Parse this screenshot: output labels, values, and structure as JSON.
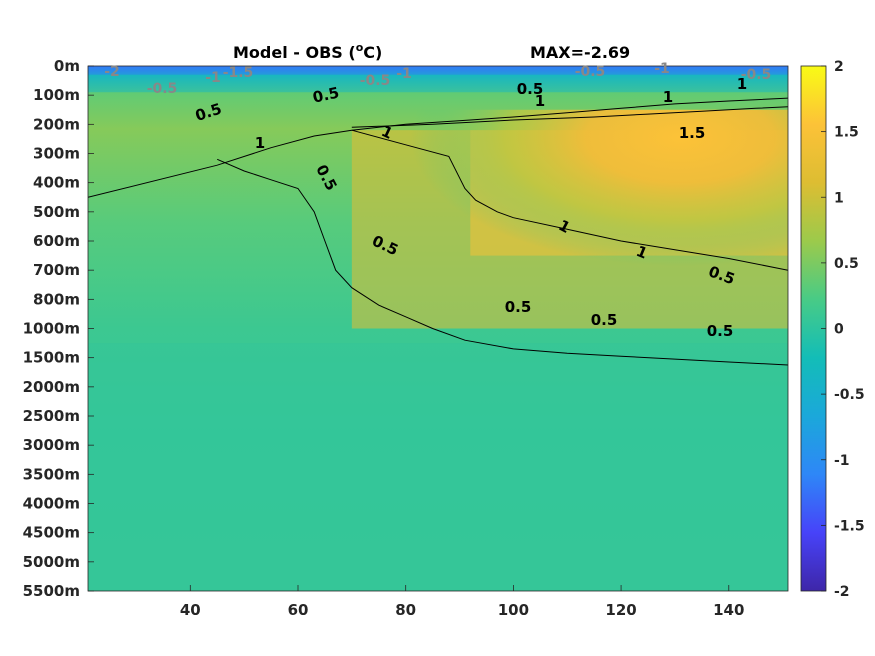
{
  "chart_data": {
    "type": "heatmap",
    "title": "Model - OBS (",
    "title_superscript": "o",
    "title_unit_suffix": "C)",
    "max_label": "MAX=-2.69",
    "x_ticks": [
      40,
      60,
      80,
      100,
      120,
      140
    ],
    "x_ticklabels": [
      "40",
      "60",
      "80",
      "100",
      "120",
      "140"
    ],
    "xlim": [
      21,
      151
    ],
    "y_ticklabels": [
      "0m",
      "100m",
      "200m",
      "300m",
      "400m",
      "500m",
      "600m",
      "700m",
      "800m",
      "1000m",
      "1500m",
      "2000m",
      "2500m",
      "3000m",
      "3500m",
      "4000m",
      "4500m",
      "5000m",
      "5500m"
    ],
    "colorbar": {
      "ticks": [
        2,
        1.5,
        1,
        0.5,
        0,
        -0.5,
        -1,
        -1.5,
        -2
      ],
      "ticklabels": [
        "2",
        "1.5",
        "1",
        "0.5",
        "0",
        "-0.5",
        "-1",
        "-1.5",
        "-2"
      ],
      "range": [
        -2,
        2
      ],
      "colormap": [
        "#3e26a8",
        "#4743f9",
        "#2e87f7",
        "#1ba8da",
        "#13bdb7",
        "#48cb86",
        "#9cca4b",
        "#ddbd32",
        "#fcc238",
        "#f9fb15"
      ]
    },
    "contours": [
      {
        "level": "0.5",
        "x": [
          21,
          45,
          55,
          63,
          70,
          80,
          92,
          100,
          110,
          120,
          130,
          140,
          151
        ],
        "depth_index": [
          4.5,
          3.4,
          2.8,
          2.4,
          2.2,
          2.0,
          1.85,
          1.75,
          1.6,
          1.45,
          1.3,
          1.2,
          1.1
        ]
      },
      {
        "level": "1",
        "x": [
          70,
          85,
          100,
          115,
          125,
          135,
          145,
          151
        ],
        "depth_index": [
          2.1,
          2.0,
          1.85,
          1.75,
          1.65,
          1.55,
          1.45,
          1.4
        ]
      },
      {
        "level": "0.5",
        "x": [
          45,
          50,
          55,
          60,
          63,
          65,
          67,
          70,
          75,
          80,
          85,
          91,
          100,
          110,
          120,
          130,
          140,
          151
        ],
        "depth_index": [
          3.2,
          3.6,
          3.9,
          4.2,
          5.0,
          6.0,
          7.0,
          7.6,
          8.2,
          8.6,
          9.0,
          9.4,
          9.7,
          9.85,
          9.95,
          10.05,
          10.15,
          10.25
        ]
      },
      {
        "level": "1",
        "x": [
          70,
          80,
          88,
          91,
          93,
          97,
          100,
          110,
          120,
          130,
          140,
          151
        ],
        "depth_index": [
          2.2,
          2.7,
          3.1,
          4.2,
          4.6,
          5.0,
          5.2,
          5.6,
          6.0,
          6.3,
          6.6,
          7.0
        ]
      }
    ],
    "contour_labels": [
      "0.5",
      "0.5",
      "0.5",
      "1",
      "0.5",
      "0.5",
      "0.5",
      "0.5",
      "0.5",
      "1",
      "1",
      "1",
      "1",
      "1",
      "0.5",
      "1",
      "1.5"
    ],
    "surface_labels": [
      "-2",
      "-1.5",
      "-1",
      "-0.5",
      "-0.5",
      "-1",
      "-0.5",
      "-1",
      "-0.5"
    ],
    "field_cells": [
      {
        "x": [
          21,
          151
        ],
        "depth_index": [
          0,
          0.3
        ],
        "value": -1.2
      },
      {
        "x": [
          21,
          151
        ],
        "depth_index": [
          0.3,
          0.9
        ],
        "value": -0.35
      },
      {
        "x": [
          70,
          151
        ],
        "depth_index": [
          2.2,
          9.0
        ],
        "value": 1.2
      },
      {
        "x": [
          92,
          151
        ],
        "depth_index": [
          2.2,
          6.5
        ],
        "value": 1.45
      },
      {
        "x": [
          21,
          151
        ],
        "depth_index": [
          9.5,
          18
        ],
        "value": 0.05
      }
    ]
  }
}
